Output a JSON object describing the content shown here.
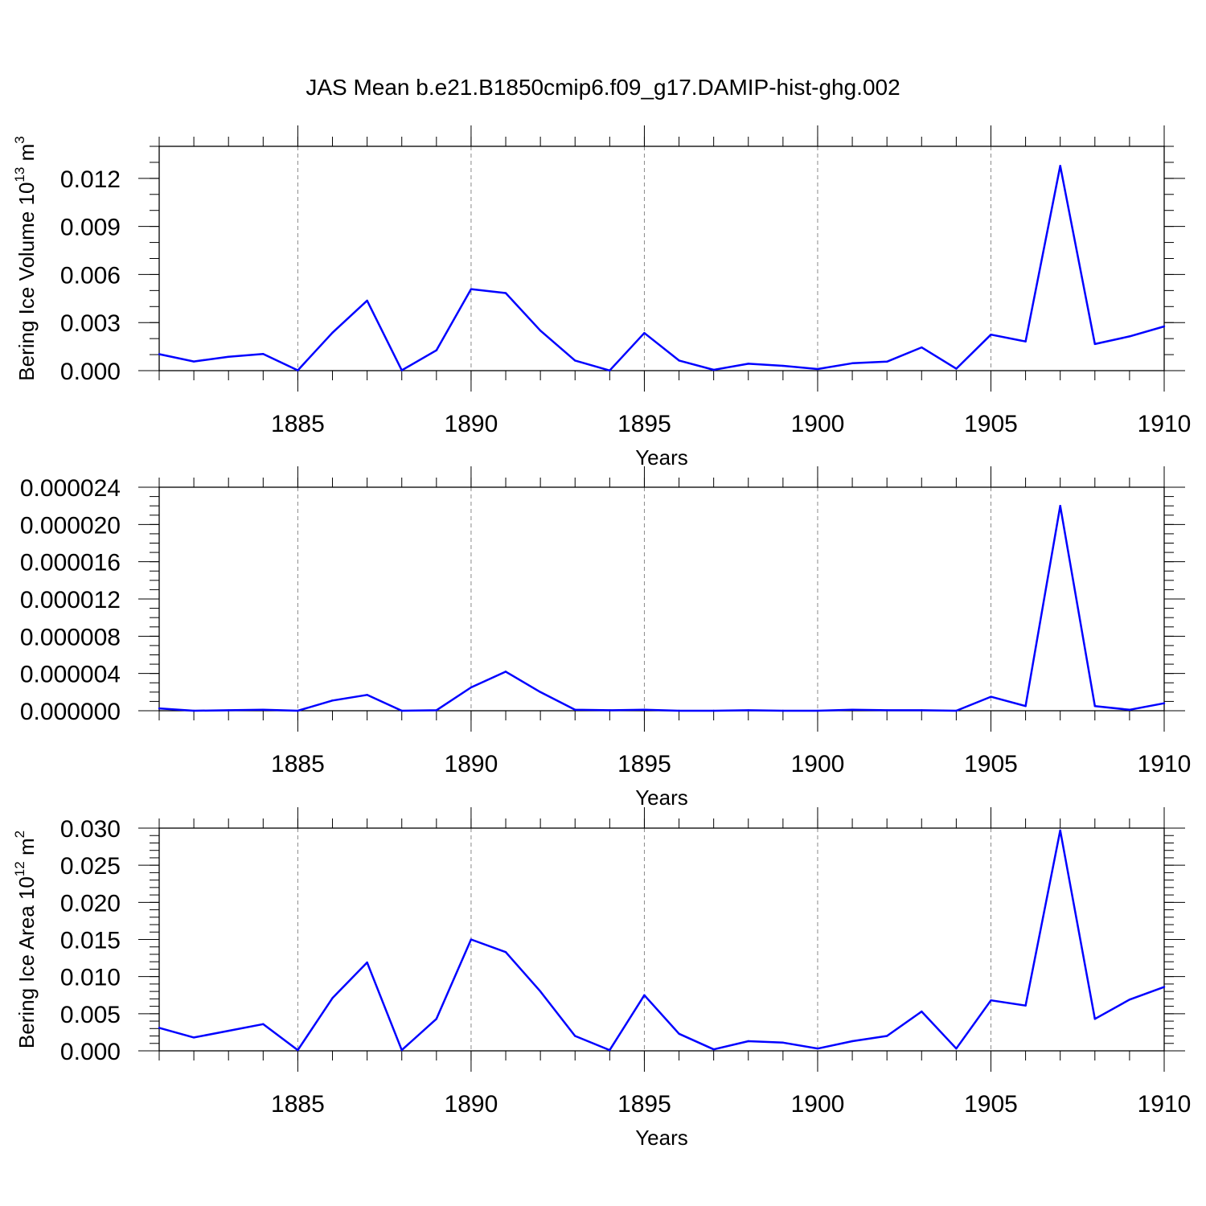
{
  "figure": {
    "title": "JAS Mean b.e21.B1850cmip6.f09_g17.DAMIP-hist-ghg.002"
  },
  "colors": {
    "series": "#0000ff",
    "axes": "#000000",
    "grid": "#8a8a8a"
  },
  "chart_data": [
    {
      "type": "line",
      "title": "JAS Mean b.e21.B1850cmip6.f09_g17.DAMIP-hist-ghg.002",
      "xlabel": "Years",
      "ylabel_main": "Bering Ice Volume 10",
      "ylabel_exp": "13",
      "ylabel_unit": " m",
      "ylabel_unit_exp": "3",
      "xlim": [
        1881,
        1910
      ],
      "ylim": [
        0,
        0.014
      ],
      "xticks": [
        1885,
        1890,
        1895,
        1900,
        1905,
        1910
      ],
      "yticks": [
        0.0,
        0.003,
        0.006,
        0.009,
        0.012
      ],
      "ytick_labels": [
        "0.000",
        "0.003",
        "0.006",
        "0.009",
        "0.012"
      ],
      "y_minor_step": 0.001,
      "grid": "x-dashed",
      "x": [
        1881,
        1882,
        1883,
        1884,
        1885,
        1886,
        1887,
        1888,
        1889,
        1890,
        1891,
        1892,
        1893,
        1894,
        1895,
        1896,
        1897,
        1898,
        1899,
        1900,
        1901,
        1902,
        1903,
        1904,
        1905,
        1906,
        1907,
        1908,
        1909,
        1910
      ],
      "values": [
        0.00103,
        0.00057,
        0.00087,
        0.00104,
        2e-05,
        0.00237,
        0.00437,
        2e-05,
        0.00127,
        0.00509,
        0.00484,
        0.0025,
        0.00063,
        1e-05,
        0.00235,
        0.00063,
        5e-05,
        0.00043,
        0.0003,
        0.0001,
        0.00046,
        0.00056,
        0.00145,
        0.00012,
        0.00225,
        0.00182,
        0.01278,
        0.00166,
        0.00214,
        0.00276
      ]
    },
    {
      "type": "line",
      "xlabel": "Years",
      "xlim": [
        1881,
        1910
      ],
      "ylim": [
        0,
        2.4e-05
      ],
      "xticks": [
        1885,
        1890,
        1895,
        1900,
        1905,
        1910
      ],
      "yticks": [
        0.0,
        4e-06,
        8e-06,
        1.2e-05,
        1.6e-05,
        2e-05,
        2.4e-05
      ],
      "ytick_labels": [
        "0.000000",
        "0.000004",
        "0.000008",
        "0.000012",
        "0.000016",
        "0.000020",
        "0.000024"
      ],
      "y_minor_step": 1e-06,
      "grid": "x-dashed",
      "x": [
        1881,
        1882,
        1883,
        1884,
        1885,
        1886,
        1887,
        1888,
        1889,
        1890,
        1891,
        1892,
        1893,
        1894,
        1895,
        1896,
        1897,
        1898,
        1899,
        1900,
        1901,
        1902,
        1903,
        1904,
        1905,
        1906,
        1907,
        1908,
        1909,
        1910
      ],
      "values": [
        2.5e-07,
        0.0,
        5e-08,
        1e-07,
        0.0,
        1.1e-06,
        1.7e-06,
        0.0,
        5e-08,
        2.5e-06,
        4.2e-06,
        2e-06,
        1e-07,
        5e-08,
        1e-07,
        0.0,
        0.0,
        5e-08,
        0.0,
        0.0,
        1e-07,
        5e-08,
        5e-08,
        0.0,
        1.5e-06,
        5e-07,
        2.2e-05,
        5e-07,
        1e-07,
        8e-07
      ]
    },
    {
      "type": "line",
      "xlabel": "Years",
      "ylabel_main": "Bering Ice Area 10",
      "ylabel_exp": "12",
      "ylabel_unit": " m",
      "ylabel_unit_exp": "2",
      "xlim": [
        1881,
        1910
      ],
      "ylim": [
        0,
        0.03
      ],
      "xticks": [
        1885,
        1890,
        1895,
        1900,
        1905,
        1910
      ],
      "yticks": [
        0.0,
        0.005,
        0.01,
        0.015,
        0.02,
        0.025,
        0.03
      ],
      "ytick_labels": [
        "0.000",
        "0.005",
        "0.010",
        "0.015",
        "0.020",
        "0.025",
        "0.030"
      ],
      "y_minor_step": 0.001,
      "grid": "x-dashed",
      "x": [
        1881,
        1882,
        1883,
        1884,
        1885,
        1886,
        1887,
        1888,
        1889,
        1890,
        1891,
        1892,
        1893,
        1894,
        1895,
        1896,
        1897,
        1898,
        1899,
        1900,
        1901,
        1902,
        1903,
        1904,
        1905,
        1906,
        1907,
        1908,
        1909,
        1910
      ],
      "values": [
        0.0031,
        0.0018,
        0.0027,
        0.0036,
        0.0001,
        0.0071,
        0.0119,
        0.0001,
        0.0043,
        0.015,
        0.0133,
        0.008,
        0.002,
        0.0001,
        0.0075,
        0.0023,
        0.0002,
        0.0013,
        0.0011,
        0.0003,
        0.0013,
        0.002,
        0.0053,
        0.0003,
        0.0068,
        0.0061,
        0.0297,
        0.0043,
        0.0069,
        0.0086
      ]
    }
  ]
}
